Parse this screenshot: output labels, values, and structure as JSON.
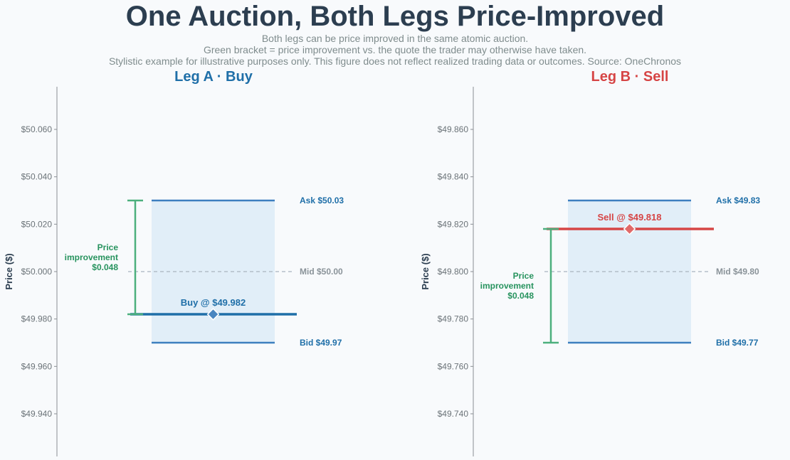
{
  "title": "One Auction, Both Legs Price-Improved",
  "subtitle_lines": [
    "Both legs can be price improved in the same atomic auction.",
    "Green bracket = price improvement vs. the quote the trader may otherwise have taken.",
    "Stylistic example for illustrative purposes only. This figure does not reflect realized trading data or outcomes. Source: OneChronos"
  ],
  "colors": {
    "buy": "#1f6fa8",
    "sell": "#d64545",
    "green": "#27935e",
    "quote_line": "#3d7fbf",
    "band_fill": "#e1eef8",
    "mid": "#a9b4be",
    "axis": "#7f8c8d",
    "title": "#2c3e50"
  },
  "chart_data": [
    {
      "type": "line",
      "title_parts": [
        "Leg A",
        "Buy"
      ],
      "title_color": "#1f6fa8",
      "ylabel": "Price ($)",
      "ylim": [
        49.922,
        50.078
      ],
      "yticks": [
        49.94,
        49.96,
        49.98,
        50.0,
        50.02,
        50.04,
        50.06
      ],
      "ytick_labels": [
        "$49.940",
        "$49.960",
        "$49.980",
        "$50.000",
        "$50.020",
        "$50.040",
        "$50.060"
      ],
      "ask": 50.03,
      "ask_label": "Ask  $50.03",
      "mid": 50.0,
      "mid_label": "Mid  $50.00",
      "bid": 49.97,
      "bid_label": "Bid  $49.97",
      "execution": 49.982,
      "execution_label": "Buy @ $49.982",
      "execution_color": "#1f6fa8",
      "improvement_from": 50.03,
      "improvement_to": 49.982,
      "improvement_lines": [
        "Price",
        "improvement",
        "$0.048"
      ]
    },
    {
      "type": "line",
      "title_parts": [
        "Leg B",
        "Sell"
      ],
      "title_color": "#d64545",
      "ylabel": "Price ($)",
      "ylim": [
        49.722,
        49.878
      ],
      "yticks": [
        49.74,
        49.76,
        49.78,
        49.8,
        49.82,
        49.84,
        49.86
      ],
      "ytick_labels": [
        "$49.740",
        "$49.760",
        "$49.780",
        "$49.800",
        "$49.820",
        "$49.840",
        "$49.860"
      ],
      "ask": 49.83,
      "ask_label": "Ask  $49.83",
      "mid": 49.8,
      "mid_label": "Mid  $49.80",
      "bid": 49.77,
      "bid_label": "Bid  $49.77",
      "execution": 49.818,
      "execution_label": "Sell @ $49.818",
      "execution_color": "#d64545",
      "improvement_from": 49.77,
      "improvement_to": 49.818,
      "improvement_lines": [
        "Price",
        "improvement",
        "$0.048"
      ]
    }
  ]
}
